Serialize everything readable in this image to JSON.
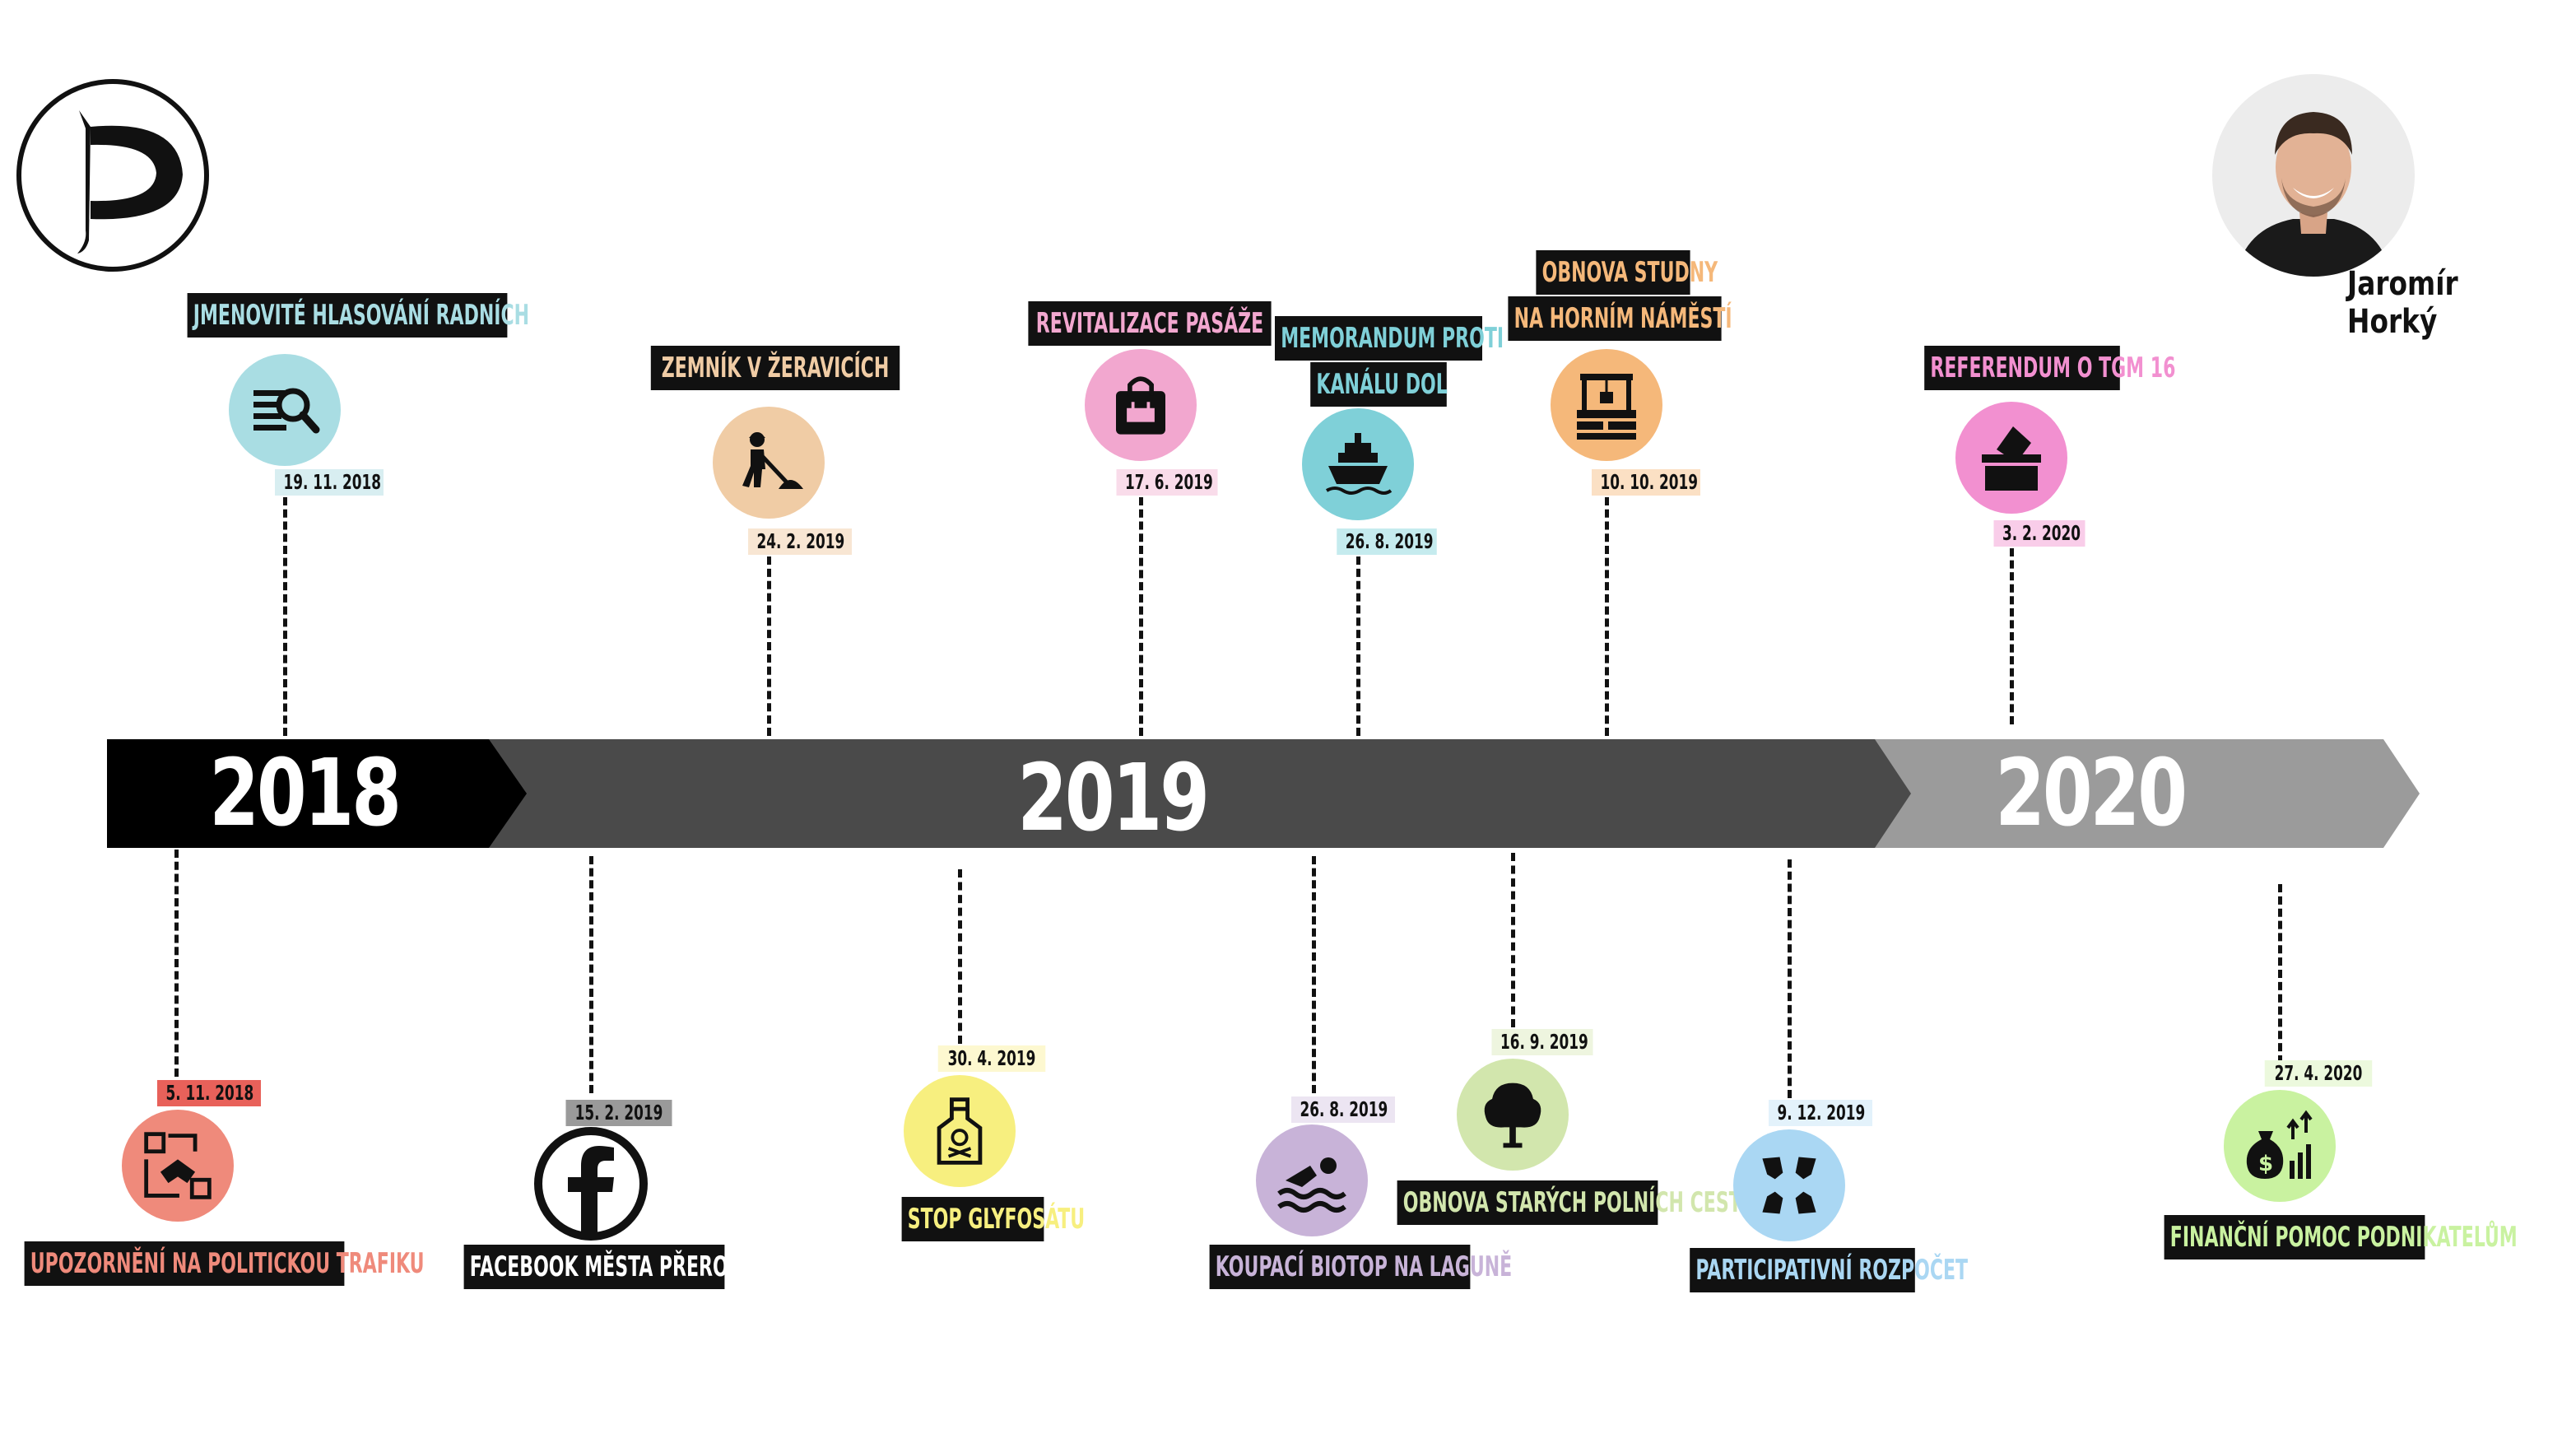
{
  "party_logo": {
    "icon": "pirate-flag-logo-icon"
  },
  "person": {
    "name": "Jaromír Horký",
    "icon": "portrait-photo"
  },
  "timeline": {
    "years": [
      {
        "label": "2018",
        "color": "#000000"
      },
      {
        "label": "2019",
        "color": "#4a4a4a"
      },
      {
        "label": "2020",
        "color": "#9b9b9b"
      }
    ]
  },
  "events_top": [
    {
      "title": "JMENOVITÉ HLASOVÁNÍ RADNÍCH",
      "date": "19. 11. 2018",
      "color": "#a9dde3",
      "text_color": "#a9dde3",
      "icon": "search-document-icon"
    },
    {
      "title": "ZEMNÍK V ŽERAVICÍCH",
      "date": "24. 2. 2019",
      "color": "#f0cca5",
      "text_color": "#f0cca5",
      "icon": "digging-worker-icon"
    },
    {
      "title": "REVITALIZACE PASÁŽE",
      "date": "17. 6. 2019",
      "color": "#f2a7cf",
      "text_color": "#f2a7cf",
      "icon": "shopping-bag-icon"
    },
    {
      "title_lines": [
        "MEMORANDUM PROTI",
        "KANÁLU DOL"
      ],
      "date": "26. 8. 2019",
      "color": "#7fd0d8",
      "text_color": "#7fd0d8",
      "icon": "ship-icon"
    },
    {
      "title_lines": [
        "OBNOVA STUDNY",
        "NA HORNÍM NÁMĚSTÍ"
      ],
      "date": "10. 10. 2019",
      "color": "#f5b87a",
      "text_color": "#f5b87a",
      "icon": "water-well-icon"
    },
    {
      "title": "REFERENDUM O TGM 16",
      "date": "3. 2. 2020",
      "color": "#f290d0",
      "text_color": "#f290d0",
      "icon": "ballot-box-icon"
    }
  ],
  "events_bottom": [
    {
      "title": "UPOZORNĚNÍ NA POLITICKOU TRAFIKU",
      "date": "5. 11. 2018",
      "color": "#ef8a7b",
      "text_color": "#ef8a7b",
      "date_bg": "#e8615a",
      "icon": "handshake-deal-icon"
    },
    {
      "title": "FACEBOOK MĚSTA PŘEROVA",
      "date": "15. 2. 2019",
      "color": "#ffffff",
      "text_color": "#ffffff",
      "date_bg": "#9a9a9a",
      "icon": "facebook-icon"
    },
    {
      "title": "STOP GLYFOSÁTU",
      "date": "30. 4. 2019",
      "color": "#f7ef7f",
      "text_color": "#f7ef7f",
      "date_bg": "#fdf8d0",
      "icon": "poison-bottle-icon"
    },
    {
      "title": "KOUPACÍ BIOTOP NA LAGUNĚ",
      "date": "26. 8. 2019",
      "color": "#c8b3d8",
      "text_color": "#c8b3d8",
      "date_bg": "#ece5f2",
      "icon": "swimmer-icon"
    },
    {
      "title": "OBNOVA STARÝCH POLNÍCH CEST",
      "date": "16. 9. 2019",
      "color": "#d2e6ad",
      "text_color": "#d2e6ad",
      "date_bg": "#eef5df",
      "icon": "tree-icon"
    },
    {
      "title": "PARTICIPATIVNÍ ROZPOČET",
      "date": "9. 12. 2019",
      "color": "#aad7f3",
      "text_color": "#aad7f3",
      "date_bg": "#e3f2fb",
      "icon": "hands-together-icon"
    },
    {
      "title": "FINANČNÍ POMOC PODNIKATELŮM",
      "date": "27. 4. 2020",
      "color": "#c9f2a0",
      "text_color": "#c9f2a0",
      "date_bg": "#ecf9dd",
      "icon": "money-bag-growth-icon"
    }
  ]
}
